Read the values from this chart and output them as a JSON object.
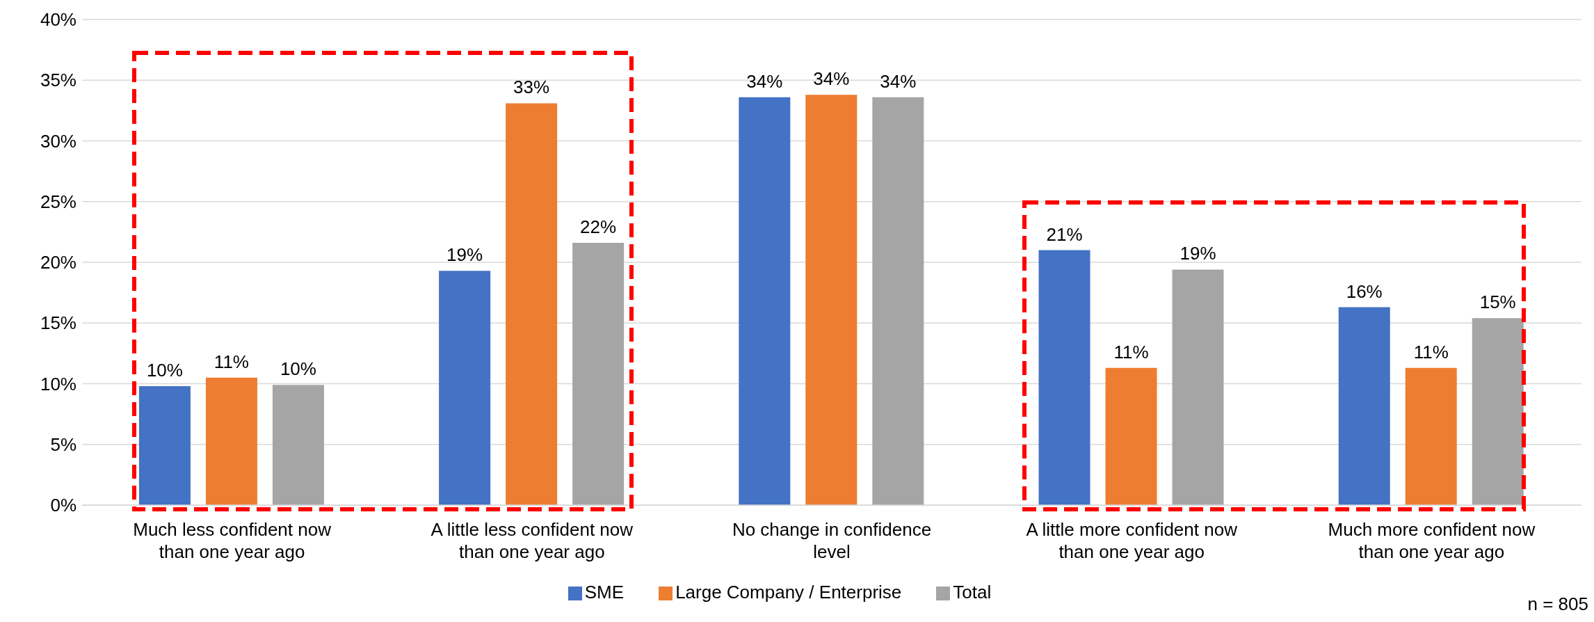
{
  "chart_data": {
    "type": "bar",
    "categories": [
      "Much less confident now than one year ago",
      "A little less confident now than one year ago",
      "No change in confidence level",
      "A little more confident now than one year ago",
      "Much more confident now than one year ago"
    ],
    "series": [
      {
        "name": "SME",
        "color": "#4472c4",
        "values": [
          9.8,
          19.3,
          33.6,
          21.0,
          16.3
        ],
        "value_labels": [
          "10%",
          "19%",
          "34%",
          "21%",
          "16%"
        ]
      },
      {
        "name": "Large Company / Enterprise",
        "color": "#ed7d31",
        "values": [
          10.5,
          33.1,
          33.8,
          11.3,
          11.3
        ],
        "value_labels": [
          "11%",
          "33%",
          "34%",
          "11%",
          "11%"
        ]
      },
      {
        "name": "Total",
        "color": "#a5a5a5",
        "values": [
          9.9,
          21.6,
          33.6,
          19.4,
          15.4
        ],
        "value_labels": [
          "10%",
          "22%",
          "34%",
          "19%",
          "15%"
        ]
      }
    ],
    "ylim": [
      0,
      40
    ],
    "yticks": [
      {
        "value": 0,
        "label": "0%"
      },
      {
        "value": 5,
        "label": "5%"
      },
      {
        "value": 10,
        "label": "10%"
      },
      {
        "value": 15,
        "label": "15%"
      },
      {
        "value": 20,
        "label": "20%"
      },
      {
        "value": 25,
        "label": "25%"
      },
      {
        "value": 30,
        "label": "30%"
      },
      {
        "value": 35,
        "label": "35%"
      },
      {
        "value": 40,
        "label": "40%"
      }
    ],
    "grid": "y",
    "legend": "bottom",
    "annotations": [
      "n = 805"
    ]
  }
}
